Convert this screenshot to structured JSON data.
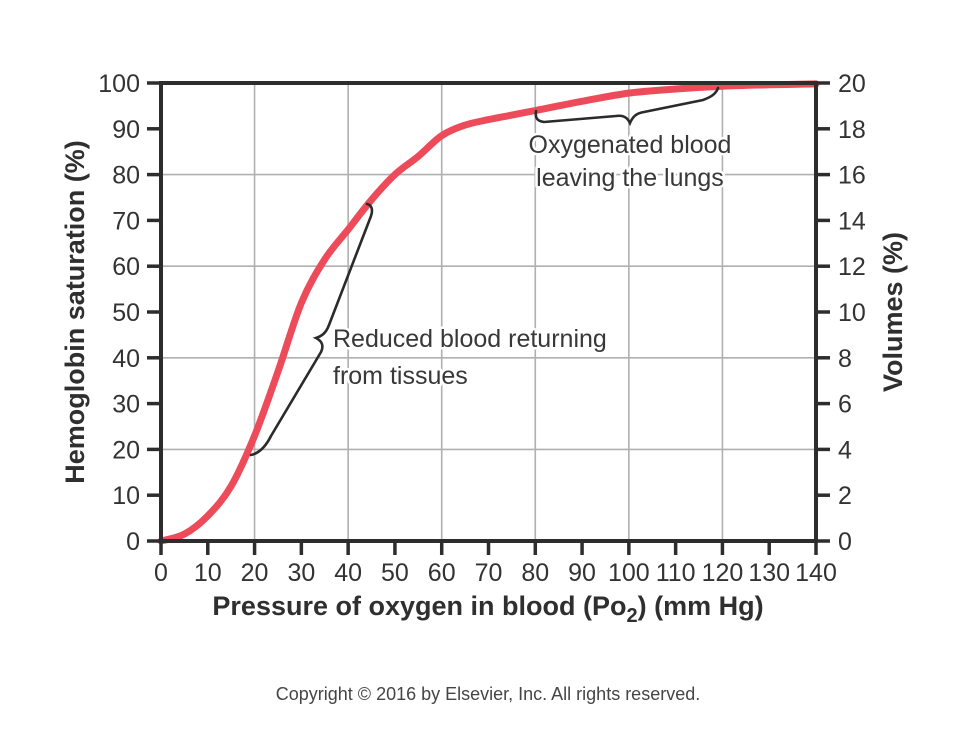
{
  "chart_data": {
    "type": "line",
    "title": "",
    "xlabel_parts": {
      "pre": "Pressure of oxygen in blood (Po",
      "sub": "2",
      "post": ") (mm Hg)"
    },
    "ylabel_left": "Hemoglobin saturation (%)",
    "ylabel_right": "Volumes (%)",
    "xlim": [
      0,
      140
    ],
    "ylim_left": [
      0,
      100
    ],
    "ylim_right": [
      0,
      20
    ],
    "x_ticks": [
      0,
      10,
      20,
      30,
      40,
      50,
      60,
      70,
      80,
      90,
      100,
      110,
      120,
      130,
      140
    ],
    "y_left_ticks": [
      0,
      10,
      20,
      30,
      40,
      50,
      60,
      70,
      80,
      90,
      100
    ],
    "y_right_ticks": [
      0,
      2,
      4,
      6,
      8,
      10,
      12,
      14,
      16,
      18,
      20
    ],
    "grid": {
      "x_values": [
        20,
        40,
        60,
        80,
        100,
        120
      ],
      "y_values_left": [
        20,
        40,
        60,
        80
      ],
      "color": "#b0b0b0"
    },
    "series": [
      {
        "name": "oxygen-hemoglobin-dissociation-curve",
        "color": "#ee4b5a",
        "points": [
          [
            0,
            0
          ],
          [
            5,
            1.5
          ],
          [
            10,
            5.5
          ],
          [
            15,
            12
          ],
          [
            20,
            23
          ],
          [
            25,
            37
          ],
          [
            30,
            52
          ],
          [
            35,
            61.5
          ],
          [
            40,
            68
          ],
          [
            45,
            74.5
          ],
          [
            50,
            80
          ],
          [
            55,
            84
          ],
          [
            60,
            88.5
          ],
          [
            65,
            90.8
          ],
          [
            70,
            92
          ],
          [
            75,
            93
          ],
          [
            80,
            94
          ],
          [
            90,
            96
          ],
          [
            100,
            97.8
          ],
          [
            110,
            98.7
          ],
          [
            120,
            99.3
          ],
          [
            130,
            99.6
          ],
          [
            140,
            99.8
          ]
        ]
      }
    ],
    "annotations": [
      {
        "id": "oxygenated",
        "lines": [
          "Oxygenated blood",
          "leaving the lungs"
        ]
      },
      {
        "id": "reduced",
        "lines": [
          "Reduced blood returning",
          "from tissues"
        ]
      }
    ],
    "legend": null,
    "axis_color": "#2d2d2d"
  },
  "footer": {
    "copyright": "Copyright © 2016 by Elsevier, Inc. All rights reserved."
  }
}
